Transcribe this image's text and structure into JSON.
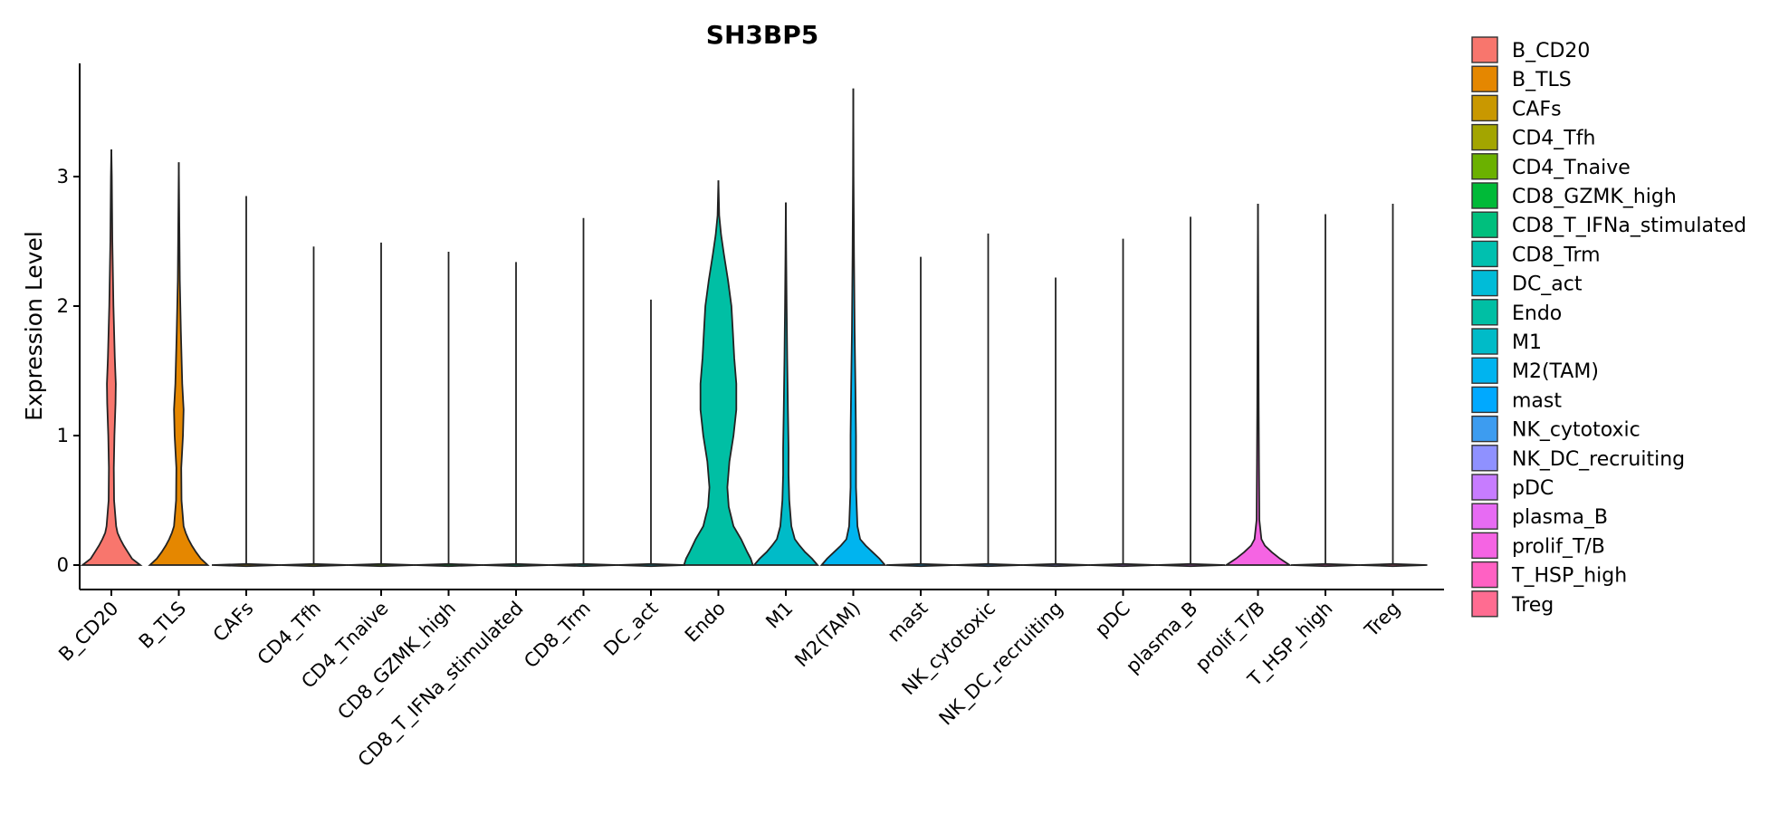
{
  "chart_data": {
    "type": "violin",
    "title": "SH3BP5",
    "xlabel": "",
    "ylabel": "Expression Level",
    "ylim": [
      -0.3,
      3.88
    ],
    "yticks": [
      0,
      1,
      2,
      3
    ],
    "legend_position": "right",
    "categories": [
      {
        "name": "B_CD20",
        "color": "#F8766D",
        "max": 3.21,
        "profile": [
          [
            0,
            0.42
          ],
          [
            0.05,
            0.3
          ],
          [
            0.1,
            0.24
          ],
          [
            0.15,
            0.18
          ],
          [
            0.2,
            0.13
          ],
          [
            0.25,
            0.09
          ],
          [
            0.3,
            0.07
          ],
          [
            0.5,
            0.04
          ],
          [
            0.75,
            0.035
          ],
          [
            1.0,
            0.045
          ],
          [
            1.25,
            0.06
          ],
          [
            1.4,
            0.065
          ],
          [
            1.6,
            0.05
          ],
          [
            2.0,
            0.03
          ],
          [
            2.5,
            0.015
          ],
          [
            3.0,
            0.006
          ],
          [
            3.21,
            0
          ]
        ]
      },
      {
        "name": "B_TLS",
        "color": "#E58700",
        "max": 3.11,
        "profile": [
          [
            0,
            0.42
          ],
          [
            0.05,
            0.32
          ],
          [
            0.1,
            0.25
          ],
          [
            0.15,
            0.19
          ],
          [
            0.2,
            0.14
          ],
          [
            0.25,
            0.1
          ],
          [
            0.3,
            0.07
          ],
          [
            0.5,
            0.04
          ],
          [
            0.75,
            0.035
          ],
          [
            1.0,
            0.06
          ],
          [
            1.2,
            0.07
          ],
          [
            1.4,
            0.05
          ],
          [
            1.8,
            0.03
          ],
          [
            2.2,
            0.015
          ],
          [
            2.7,
            0.006
          ],
          [
            3.11,
            0
          ]
        ]
      },
      {
        "name": "CAFs",
        "color": "#C99800",
        "max": 2.85,
        "profile": []
      },
      {
        "name": "CD4_Tfh",
        "color": "#A3A500",
        "max": 2.46,
        "profile": []
      },
      {
        "name": "CD4_Tnaive",
        "color": "#6BB100",
        "max": 2.49,
        "profile": []
      },
      {
        "name": "CD8_GZMK_high",
        "color": "#00BA38",
        "max": 2.42,
        "profile": []
      },
      {
        "name": "CD8_T_IFNa_stimulated",
        "color": "#00BF7D",
        "max": 2.34,
        "profile": []
      },
      {
        "name": "CD8_Trm",
        "color": "#00C0AF",
        "max": 2.68,
        "profile": []
      },
      {
        "name": "DC_act",
        "color": "#00BCD8",
        "max": 2.05,
        "profile": []
      },
      {
        "name": "Endo",
        "color": "#00BFA4",
        "max": 2.97,
        "profile": [
          [
            0,
            0.5
          ],
          [
            0.05,
            0.47
          ],
          [
            0.1,
            0.42
          ],
          [
            0.2,
            0.33
          ],
          [
            0.3,
            0.22
          ],
          [
            0.45,
            0.15
          ],
          [
            0.6,
            0.13
          ],
          [
            0.8,
            0.16
          ],
          [
            1.0,
            0.22
          ],
          [
            1.2,
            0.26
          ],
          [
            1.4,
            0.26
          ],
          [
            1.6,
            0.23
          ],
          [
            1.8,
            0.21
          ],
          [
            2.0,
            0.19
          ],
          [
            2.2,
            0.14
          ],
          [
            2.4,
            0.08
          ],
          [
            2.55,
            0.04
          ],
          [
            2.7,
            0.012
          ],
          [
            2.97,
            0
          ]
        ]
      },
      {
        "name": "M1",
        "color": "#00BBC8",
        "max": 2.8,
        "profile": [
          [
            0,
            0.46
          ],
          [
            0.05,
            0.38
          ],
          [
            0.1,
            0.28
          ],
          [
            0.15,
            0.2
          ],
          [
            0.2,
            0.13
          ],
          [
            0.3,
            0.08
          ],
          [
            0.5,
            0.05
          ],
          [
            0.7,
            0.04
          ],
          [
            0.9,
            0.04
          ],
          [
            1.2,
            0.03
          ],
          [
            1.6,
            0.02
          ],
          [
            2.0,
            0.012
          ],
          [
            2.4,
            0.005
          ],
          [
            2.8,
            0
          ]
        ]
      },
      {
        "name": "M2(TAM)",
        "color": "#00B4EF",
        "max": 3.68,
        "profile": [
          [
            0,
            0.46
          ],
          [
            0.05,
            0.38
          ],
          [
            0.1,
            0.28
          ],
          [
            0.15,
            0.18
          ],
          [
            0.2,
            0.1
          ],
          [
            0.3,
            0.06
          ],
          [
            0.6,
            0.04
          ],
          [
            1.0,
            0.04
          ],
          [
            1.4,
            0.03
          ],
          [
            1.8,
            0.02
          ],
          [
            2.4,
            0.01
          ],
          [
            3.0,
            0.004
          ],
          [
            3.68,
            0
          ]
        ]
      },
      {
        "name": "mast",
        "color": "#00A9FF",
        "max": 2.38,
        "profile": []
      },
      {
        "name": "NK_cytotoxic",
        "color": "#3D9CF0",
        "max": 2.56,
        "profile": []
      },
      {
        "name": "NK_DC_recruiting",
        "color": "#8F91FF",
        "max": 2.22,
        "profile": []
      },
      {
        "name": "pDC",
        "color": "#C77CFF",
        "max": 2.52,
        "profile": []
      },
      {
        "name": "plasma_B",
        "color": "#E76BF3",
        "max": 2.69,
        "profile": []
      },
      {
        "name": "prolif_T/B",
        "color": "#F564E3",
        "max": 2.79,
        "profile": [
          [
            0,
            0.46
          ],
          [
            0.05,
            0.32
          ],
          [
            0.1,
            0.2
          ],
          [
            0.15,
            0.1
          ],
          [
            0.2,
            0.05
          ],
          [
            0.35,
            0.02
          ],
          [
            0.8,
            0.014
          ],
          [
            1.2,
            0.01
          ],
          [
            1.8,
            0.006
          ],
          [
            2.4,
            0.003
          ],
          [
            2.79,
            0
          ]
        ]
      },
      {
        "name": "T_HSP_high",
        "color": "#FF61C3",
        "max": 2.71,
        "profile": []
      },
      {
        "name": "Treg",
        "color": "#FF6C91",
        "max": 2.79,
        "profile": []
      }
    ]
  }
}
